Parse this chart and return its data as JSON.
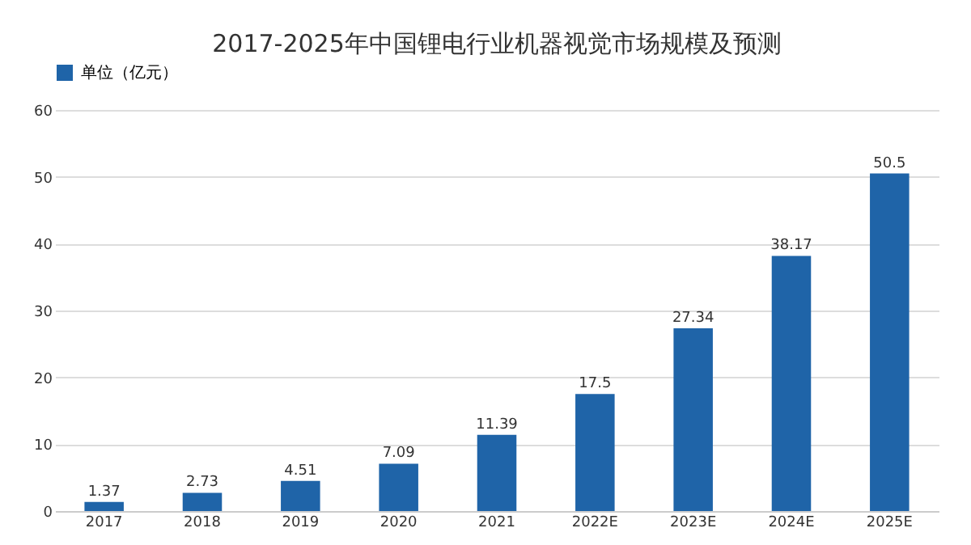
{
  "chart_data": {
    "type": "bar",
    "title": "2017-2025年中国锂电行业机器视觉市场规模及预测",
    "categories": [
      "2017",
      "2018",
      "2019",
      "2020",
      "2021",
      "2022E",
      "2023E",
      "2024E",
      "2025E"
    ],
    "series": [
      {
        "name": "单位（亿元）",
        "color": "#1f64a8",
        "values": [
          1.37,
          2.73,
          4.51,
          7.09,
          11.39,
          17.5,
          27.34,
          38.17,
          50.5
        ]
      }
    ],
    "ylim": [
      0,
      60
    ],
    "yticks": [
      0,
      10,
      20,
      30,
      40,
      50,
      60
    ],
    "grid": "y",
    "legend": "top",
    "data_labels": true
  }
}
